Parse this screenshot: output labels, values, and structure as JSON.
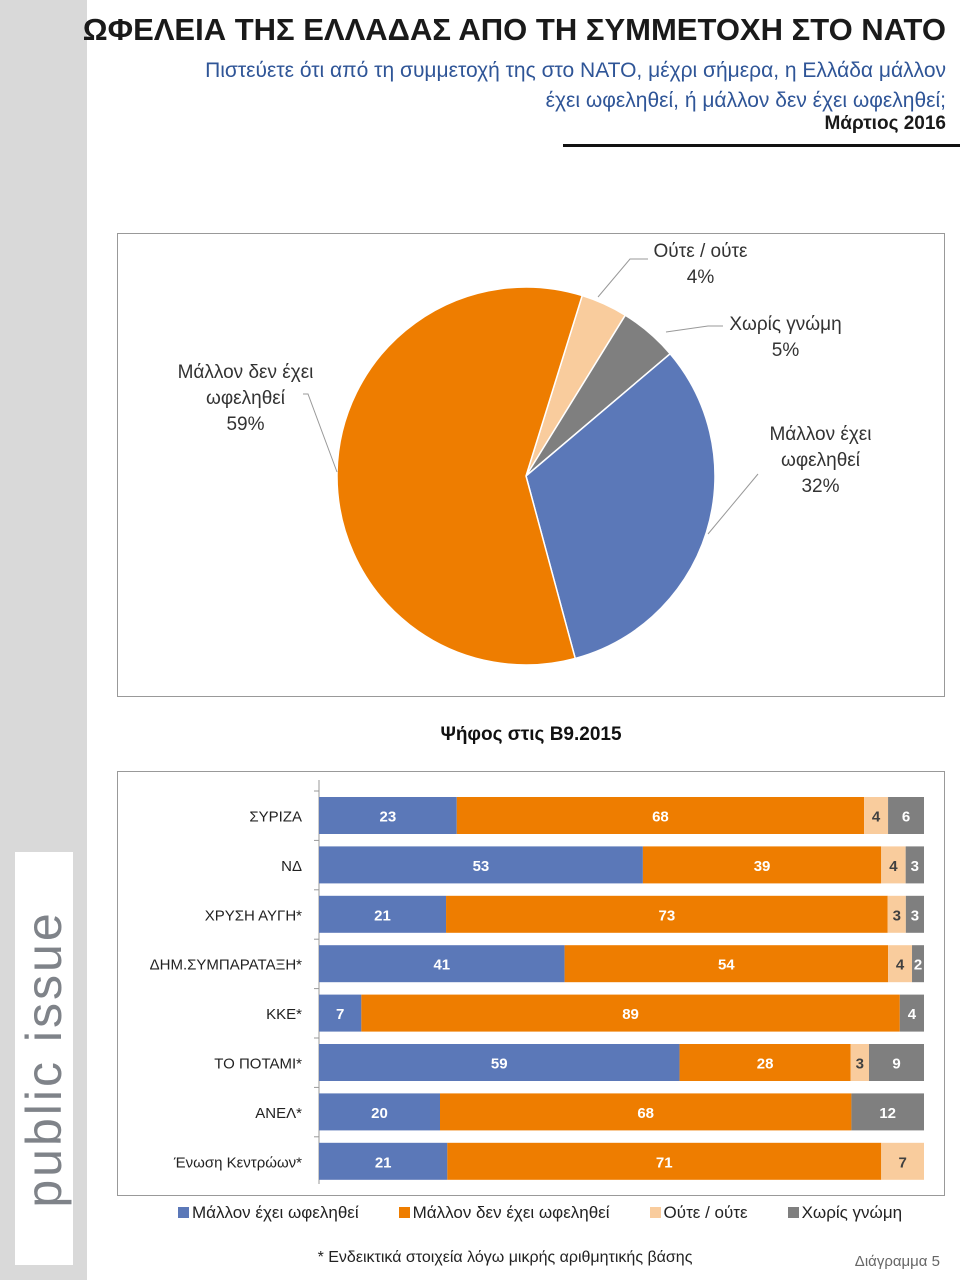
{
  "header": {
    "title": "ΩΦΕΛΕΙΑ ΤΗΣ ΕΛΛΑΔΑΣ ΑΠΟ ΤΗ ΣΥΜΜΕΤΟΧΗ ΣΤΟ ΝΑΤΟ",
    "subtitle_line1": "Πιστεύετε ότι από τη συμμετοχή της στο ΝΑΤΟ, μέχρι σήμερα, η Ελλάδα μάλλον",
    "subtitle_line2": "έχει ωφεληθεί, ή μάλλον δεν έχει ωφεληθεί;",
    "date": "Μάρτιος 2016"
  },
  "logo": "public issue",
  "section_title": "Ψήφος στις Β9.2015",
  "footnote": "* Ενδεικτικά στοιχεία λόγω μικρής αριθμητικής βάσης",
  "diagram_label": "Διάγραμμα 5",
  "colors": {
    "benefit": "#5b78b8",
    "no_benefit": "#ee7d00",
    "neither": "#f9cc9d",
    "no_opinion": "#7f7f7f"
  },
  "chart_data": [
    {
      "type": "pie",
      "slices": [
        {
          "label": "Ούτε / ούτε",
          "value": 4,
          "text": "4%",
          "color": "#f9cc9d"
        },
        {
          "label": "Χωρίς γνώμη",
          "value": 5,
          "text": "5%",
          "color": "#7f7f7f"
        },
        {
          "label": "Μάλλον έχει ωφεληθεί",
          "value": 32,
          "text": "32%",
          "color": "#5b78b8"
        },
        {
          "label": "Μάλλον δεν έχει ωφεληθεί",
          "value": 59,
          "text": "59%",
          "color": "#ee7d00"
        }
      ]
    },
    {
      "type": "bar",
      "stacked": true,
      "orientation": "horizontal",
      "title": "Ψήφος στις Β9.2015",
      "categories": [
        "ΣΥΡΙΖΑ",
        "ΝΔ",
        "ΧΡΥΣΗ ΑΥΓΗ*",
        "ΔΗΜ.ΣΥΜΠΑΡΑΤΑΞΗ*",
        "ΚΚΕ*",
        "ΤΟ ΠΟΤΑΜΙ*",
        "ΑΝΕΛ*",
        "Ένωση Κεντρώων*"
      ],
      "series": [
        {
          "name": "Μάλλον έχει ωφεληθεί",
          "color": "#5b78b8",
          "label_color": "#ffffff",
          "values": [
            23,
            53,
            21,
            41,
            7,
            59,
            20,
            21
          ]
        },
        {
          "name": "Μάλλον δεν έχει ωφεληθεί",
          "color": "#ee7d00",
          "label_color": "#ffffff",
          "values": [
            68,
            39,
            73,
            54,
            89,
            28,
            68,
            71
          ]
        },
        {
          "name": "Ούτε / ούτε",
          "color": "#f9cc9d",
          "label_color": "#404040",
          "values": [
            4,
            4,
            3,
            4,
            null,
            3,
            null,
            7
          ]
        },
        {
          "name": "Χωρίς γνώμη",
          "color": "#7f7f7f",
          "label_color": "#ffffff",
          "values": [
            6,
            3,
            3,
            2,
            4,
            9,
            12,
            null
          ]
        }
      ],
      "legend": "bottom"
    }
  ]
}
